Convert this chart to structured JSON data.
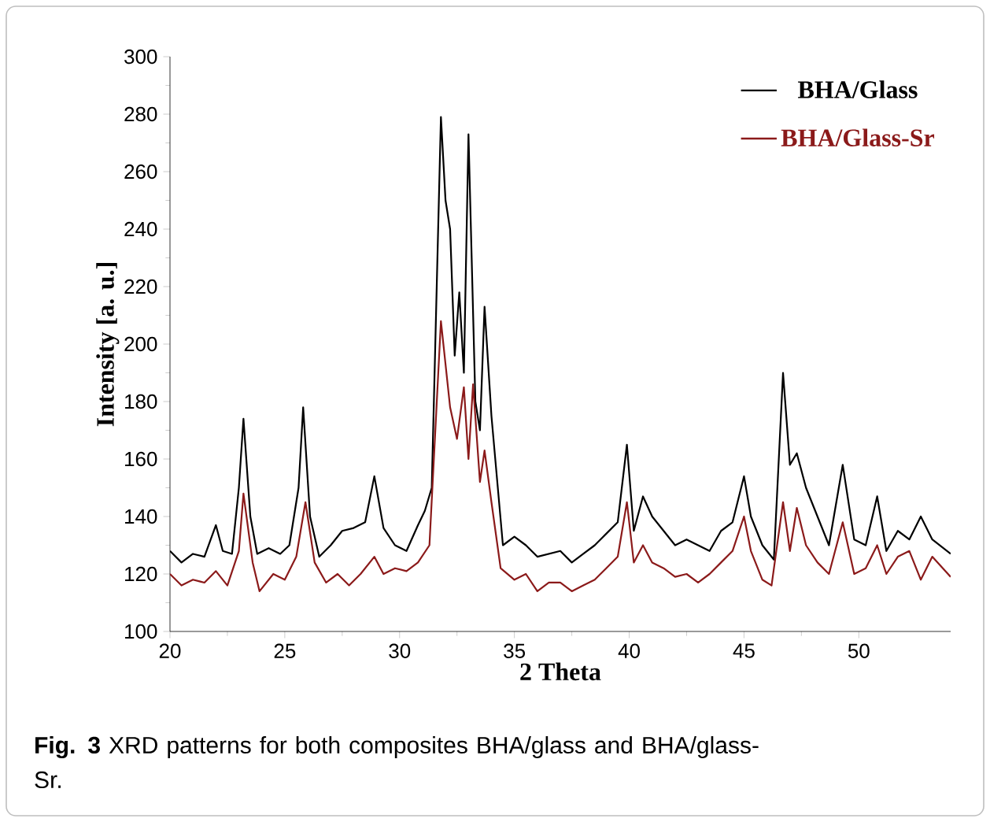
{
  "chart_data": {
    "type": "line",
    "xlabel": "2 Theta",
    "ylabel": "Intensity [a. u.]",
    "annotations": [
      "**Fig. 3** XRD patterns for both composites BHA/glass and BHA/glass-Sr."
    ],
    "xlim": [
      20,
      54
    ],
    "ylim": [
      100,
      300
    ],
    "xticks": [
      20,
      25,
      30,
      35,
      40,
      45,
      50
    ],
    "yticks": [
      100,
      120,
      140,
      160,
      180,
      200,
      220,
      240,
      260,
      280,
      300
    ],
    "legend": "top right",
    "marker": "none",
    "line_style": "solid",
    "series": [
      {
        "name": "BHA/Glass",
        "color": "#000000",
        "x": [
          20,
          20.5,
          21,
          21.5,
          22,
          22.3,
          22.7,
          23,
          23.2,
          23.5,
          23.8,
          24.3,
          24.8,
          25.2,
          25.6,
          25.8,
          26.1,
          26.5,
          27,
          27.5,
          28,
          28.5,
          28.9,
          29.3,
          29.8,
          30.3,
          30.8,
          31.1,
          31.4,
          31.8,
          32,
          32.2,
          32.4,
          32.6,
          32.8,
          33,
          33.3,
          33.5,
          33.7,
          34,
          34.5,
          35,
          35.5,
          36,
          36.5,
          37,
          37.5,
          38,
          38.5,
          39,
          39.5,
          39.9,
          40.2,
          40.6,
          41,
          41.5,
          42,
          42.5,
          43,
          43.5,
          44,
          44.5,
          45,
          45.3,
          45.8,
          46.3,
          46.7,
          47,
          47.3,
          47.7,
          48.2,
          48.7,
          49.3,
          49.8,
          50.3,
          50.8,
          51.2,
          51.7,
          52.2,
          52.7,
          53.2,
          54
        ],
        "values": [
          128,
          124,
          127,
          126,
          137,
          128,
          127,
          150,
          174,
          140,
          127,
          129,
          127,
          130,
          150,
          178,
          140,
          126,
          130,
          135,
          136,
          138,
          154,
          136,
          130,
          128,
          137,
          142,
          150,
          279,
          250,
          240,
          196,
          218,
          190,
          273,
          180,
          170,
          213,
          175,
          130,
          133,
          130,
          126,
          127,
          128,
          124,
          127,
          130,
          134,
          138,
          165,
          135,
          147,
          140,
          135,
          130,
          132,
          130,
          128,
          135,
          138,
          154,
          140,
          130,
          125,
          190,
          158,
          162,
          150,
          140,
          130,
          158,
          132,
          130,
          147,
          128,
          135,
          132,
          140,
          132,
          127
        ]
      },
      {
        "name": "BHA/Glass-Sr",
        "color": "#8b1a1a",
        "x": [
          20,
          20.5,
          21,
          21.5,
          22,
          22.5,
          23,
          23.2,
          23.6,
          23.9,
          24.5,
          25,
          25.5,
          25.9,
          26.3,
          26.8,
          27.3,
          27.8,
          28.3,
          28.9,
          29.3,
          29.8,
          30.3,
          30.8,
          31.3,
          31.8,
          32.2,
          32.5,
          32.8,
          33,
          33.2,
          33.5,
          33.7,
          34,
          34.4,
          35,
          35.5,
          36,
          36.5,
          37,
          37.5,
          38,
          38.5,
          39,
          39.5,
          39.9,
          40.2,
          40.6,
          41,
          41.5,
          42,
          42.5,
          43,
          43.5,
          44,
          44.5,
          45,
          45.3,
          45.8,
          46.2,
          46.7,
          47,
          47.3,
          47.7,
          48.2,
          48.7,
          49.3,
          49.8,
          50.3,
          50.8,
          51.2,
          51.7,
          52.2,
          52.7,
          53.2,
          54
        ],
        "values": [
          120,
          116,
          118,
          117,
          121,
          116,
          128,
          148,
          124,
          114,
          120,
          118,
          126,
          145,
          124,
          117,
          120,
          116,
          120,
          126,
          120,
          122,
          121,
          124,
          130,
          208,
          178,
          167,
          185,
          160,
          186,
          152,
          163,
          145,
          122,
          118,
          120,
          114,
          117,
          117,
          114,
          116,
          118,
          122,
          126,
          145,
          124,
          130,
          124,
          122,
          119,
          120,
          117,
          120,
          124,
          128,
          140,
          128,
          118,
          116,
          145,
          128,
          143,
          130,
          124,
          120,
          138,
          120,
          122,
          130,
          120,
          126,
          128,
          118,
          126,
          119
        ]
      }
    ]
  }
}
